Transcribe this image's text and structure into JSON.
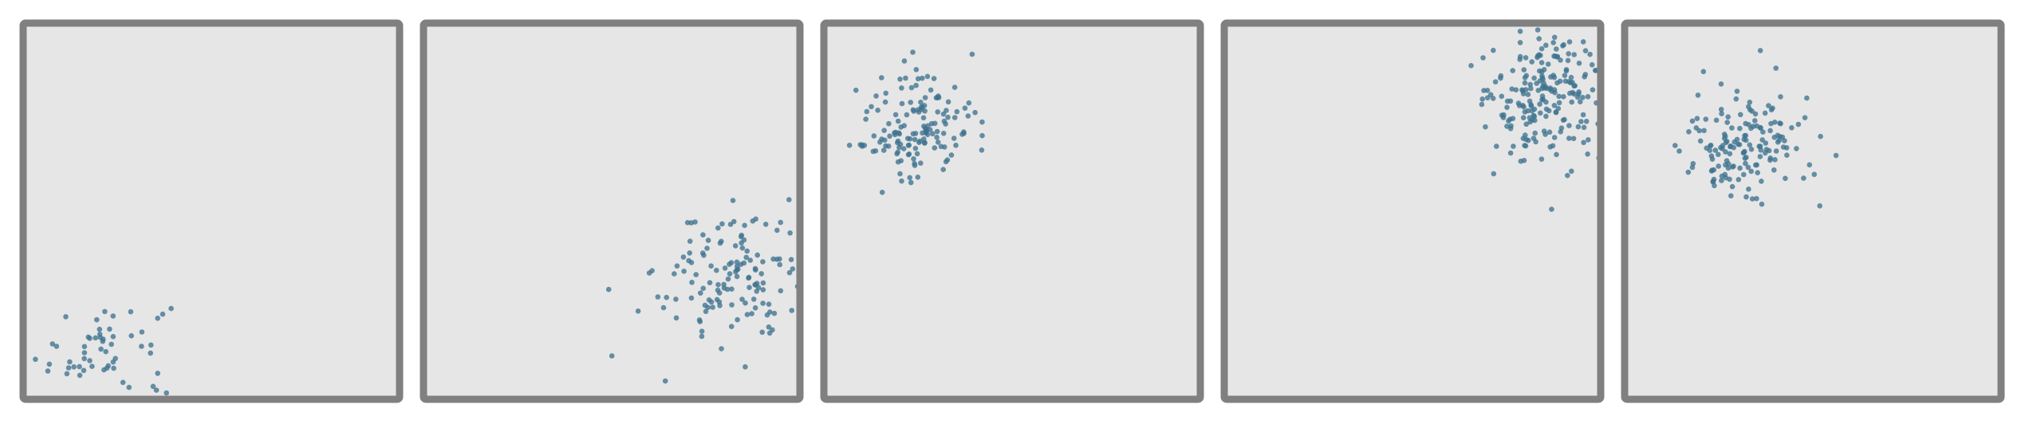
{
  "chart_data": [
    {
      "type": "scatter",
      "xlim": [
        0,
        1
      ],
      "ylim": [
        0,
        1
      ],
      "grid": false,
      "center": [
        0.22,
        0.13
      ],
      "spread": [
        0.16,
        0.13
      ],
      "count": 60,
      "dot_color": "#3f7390"
    },
    {
      "type": "scatter",
      "xlim": [
        0,
        1
      ],
      "ylim": [
        0,
        1
      ],
      "grid": false,
      "center": [
        0.82,
        0.33
      ],
      "spread": [
        0.18,
        0.17
      ],
      "count": 140,
      "dot_color": "#3f7390"
    },
    {
      "type": "scatter",
      "xlim": [
        0,
        1
      ],
      "ylim": [
        0,
        1
      ],
      "grid": false,
      "center": [
        0.25,
        0.72
      ],
      "spread": [
        0.14,
        0.14
      ],
      "count": 150,
      "dot_color": "#3f7390"
    },
    {
      "type": "scatter",
      "xlim": [
        0,
        1
      ],
      "ylim": [
        0,
        1
      ],
      "grid": false,
      "center": [
        0.86,
        0.8
      ],
      "spread": [
        0.16,
        0.16
      ],
      "count": 230,
      "dot_color": "#3f7390"
    },
    {
      "type": "scatter",
      "xlim": [
        0,
        1
      ],
      "ylim": [
        0,
        1
      ],
      "grid": false,
      "center": [
        0.32,
        0.68
      ],
      "spread": [
        0.15,
        0.14
      ],
      "count": 160,
      "dot_color": "#3f7390"
    }
  ]
}
